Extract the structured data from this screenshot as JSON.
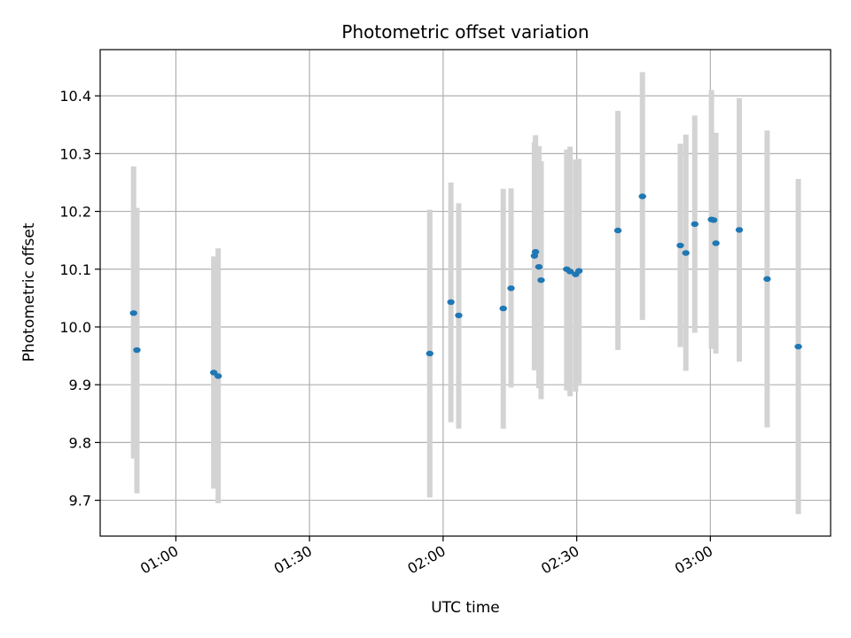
{
  "chart_data": {
    "type": "scatter",
    "title": "Photometric offset variation",
    "xlabel": "UTC time",
    "ylabel": "Photometric offset",
    "x_axis": {
      "type": "time",
      "range": [
        "00:43",
        "03:27"
      ],
      "ticks": [
        "01:00",
        "01:30",
        "02:00",
        "02:30",
        "03:00"
      ]
    },
    "y_axis": {
      "range": [
        9.638,
        10.48
      ],
      "ticks": [
        "9.7",
        "9.8",
        "9.9",
        "10.0",
        "10.1",
        "10.2",
        "10.3",
        "10.4"
      ]
    },
    "grid": true,
    "colors": {
      "point": "#1f77b4",
      "errorbar": "#d3d3d3",
      "grid": "#b0b0b0"
    },
    "points": [
      {
        "x": "00:50:30",
        "y": 10.024,
        "low": 9.772,
        "high": 10.278
      },
      {
        "x": "00:51:15",
        "y": 9.96,
        "low": 9.712,
        "high": 10.206
      },
      {
        "x": "01:08:30",
        "y": 9.921,
        "low": 9.72,
        "high": 10.122
      },
      {
        "x": "01:09:30",
        "y": 9.915,
        "low": 9.695,
        "high": 10.136
      },
      {
        "x": "01:57:00",
        "y": 9.954,
        "low": 9.705,
        "high": 10.203
      },
      {
        "x": "02:01:45",
        "y": 10.043,
        "low": 9.835,
        "high": 10.25
      },
      {
        "x": "02:03:30",
        "y": 10.02,
        "low": 9.824,
        "high": 10.214
      },
      {
        "x": "02:13:30",
        "y": 10.032,
        "low": 9.824,
        "high": 10.239
      },
      {
        "x": "02:15:15",
        "y": 10.067,
        "low": 9.895,
        "high": 10.24
      },
      {
        "x": "02:20:30",
        "y": 10.123,
        "low": 9.925,
        "high": 10.32
      },
      {
        "x": "02:20:45",
        "y": 10.13,
        "low": 9.928,
        "high": 10.332
      },
      {
        "x": "02:21:30",
        "y": 10.104,
        "low": 9.894,
        "high": 10.313
      },
      {
        "x": "02:22:00",
        "y": 10.081,
        "low": 9.875,
        "high": 10.287
      },
      {
        "x": "02:27:45",
        "y": 10.1,
        "low": 9.89,
        "high": 10.307
      },
      {
        "x": "02:28:30",
        "y": 10.096,
        "low": 9.88,
        "high": 10.312
      },
      {
        "x": "02:29:45",
        "y": 10.091,
        "low": 9.888,
        "high": 10.29
      },
      {
        "x": "02:30:30",
        "y": 10.097,
        "low": 9.902,
        "high": 10.291
      },
      {
        "x": "02:39:15",
        "y": 10.167,
        "low": 9.96,
        "high": 10.374
      },
      {
        "x": "02:44:45",
        "y": 10.226,
        "low": 10.012,
        "high": 10.441
      },
      {
        "x": "02:53:15",
        "y": 10.141,
        "low": 9.965,
        "high": 10.317
      },
      {
        "x": "02:54:30",
        "y": 10.128,
        "low": 9.924,
        "high": 10.333
      },
      {
        "x": "02:56:30",
        "y": 10.178,
        "low": 9.99,
        "high": 10.366
      },
      {
        "x": "03:00:15",
        "y": 10.186,
        "low": 9.962,
        "high": 10.41
      },
      {
        "x": "03:00:45",
        "y": 10.185,
        "low": 10.036,
        "high": 10.334
      },
      {
        "x": "03:01:15",
        "y": 10.145,
        "low": 9.954,
        "high": 10.336
      },
      {
        "x": "03:06:30",
        "y": 10.168,
        "low": 9.94,
        "high": 10.396
      },
      {
        "x": "03:12:45",
        "y": 10.083,
        "low": 9.826,
        "high": 10.34
      },
      {
        "x": "03:19:45",
        "y": 9.966,
        "low": 9.676,
        "high": 10.256
      }
    ]
  }
}
